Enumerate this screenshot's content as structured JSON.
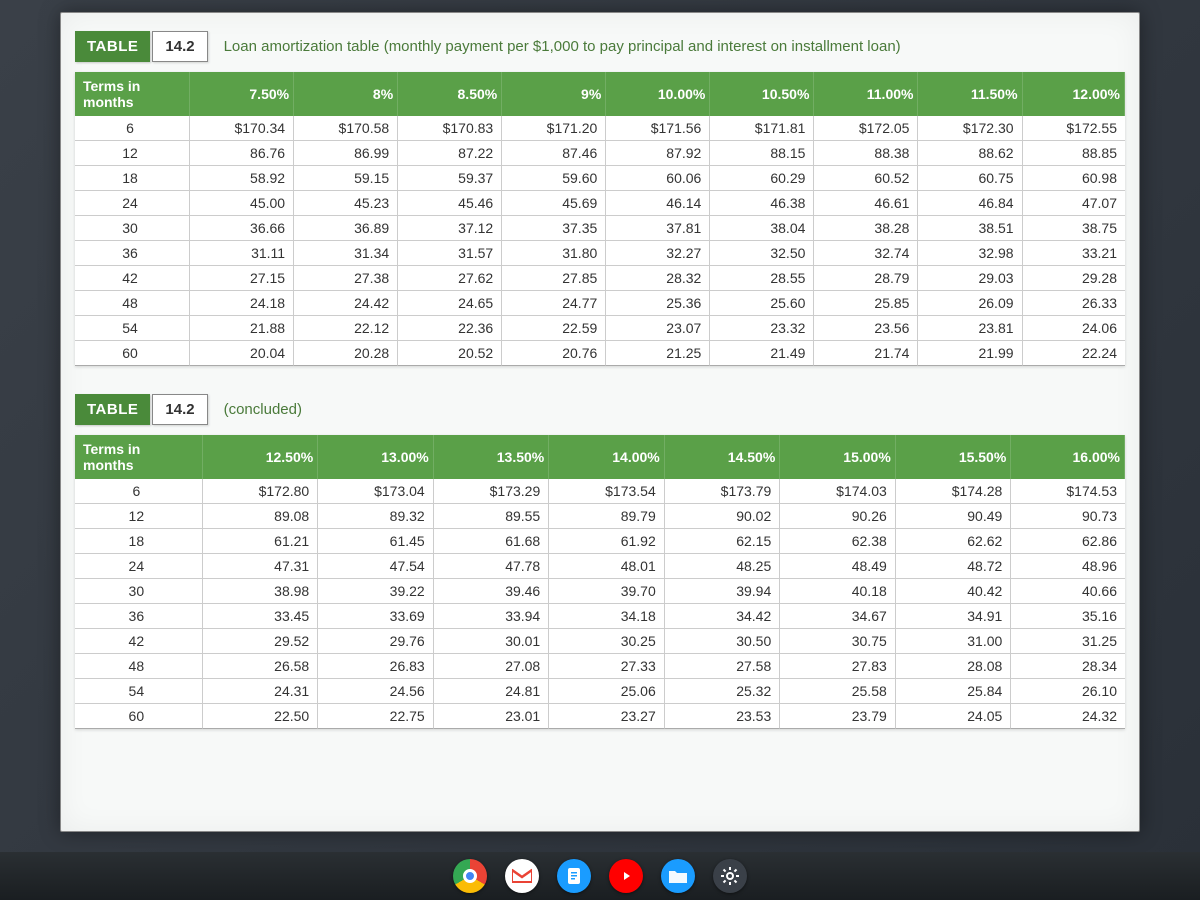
{
  "table1": {
    "tag": "TABLE",
    "num": "14.2",
    "caption": "Loan amortization table (monthly payment per $1,000 to pay principal and interest on installment loan)",
    "row_header": "Terms in months",
    "cols": [
      "7.50%",
      "8%",
      "8.50%",
      "9%",
      "10.00%",
      "10.50%",
      "11.00%",
      "11.50%",
      "12.00%"
    ],
    "row_labels": [
      "6",
      "12",
      "18",
      "24",
      "30",
      "36",
      "42",
      "48",
      "54",
      "60"
    ],
    "rows": [
      [
        "$170.34",
        "$170.58",
        "$170.83",
        "$171.20",
        "$171.56",
        "$171.81",
        "$172.05",
        "$172.30",
        "$172.55"
      ],
      [
        "86.76",
        "86.99",
        "87.22",
        "87.46",
        "87.92",
        "88.15",
        "88.38",
        "88.62",
        "88.85"
      ],
      [
        "58.92",
        "59.15",
        "59.37",
        "59.60",
        "60.06",
        "60.29",
        "60.52",
        "60.75",
        "60.98"
      ],
      [
        "45.00",
        "45.23",
        "45.46",
        "45.69",
        "46.14",
        "46.38",
        "46.61",
        "46.84",
        "47.07"
      ],
      [
        "36.66",
        "36.89",
        "37.12",
        "37.35",
        "37.81",
        "38.04",
        "38.28",
        "38.51",
        "38.75"
      ],
      [
        "31.11",
        "31.34",
        "31.57",
        "31.80",
        "32.27",
        "32.50",
        "32.74",
        "32.98",
        "33.21"
      ],
      [
        "27.15",
        "27.38",
        "27.62",
        "27.85",
        "28.32",
        "28.55",
        "28.79",
        "29.03",
        "29.28"
      ],
      [
        "24.18",
        "24.42",
        "24.65",
        "24.77",
        "25.36",
        "25.60",
        "25.85",
        "26.09",
        "26.33"
      ],
      [
        "21.88",
        "22.12",
        "22.36",
        "22.59",
        "23.07",
        "23.32",
        "23.56",
        "23.81",
        "24.06"
      ],
      [
        "20.04",
        "20.28",
        "20.52",
        "20.76",
        "21.25",
        "21.49",
        "21.74",
        "21.99",
        "22.24"
      ]
    ]
  },
  "table2": {
    "tag": "TABLE",
    "num": "14.2",
    "caption": "(concluded)",
    "row_header": "Terms in months",
    "cols": [
      "12.50%",
      "13.00%",
      "13.50%",
      "14.00%",
      "14.50%",
      "15.00%",
      "15.50%",
      "16.00%"
    ],
    "row_labels": [
      "6",
      "12",
      "18",
      "24",
      "30",
      "36",
      "42",
      "48",
      "54",
      "60"
    ],
    "rows": [
      [
        "$172.80",
        "$173.04",
        "$173.29",
        "$173.54",
        "$173.79",
        "$174.03",
        "$174.28",
        "$174.53"
      ],
      [
        "89.08",
        "89.32",
        "89.55",
        "89.79",
        "90.02",
        "90.26",
        "90.49",
        "90.73"
      ],
      [
        "61.21",
        "61.45",
        "61.68",
        "61.92",
        "62.15",
        "62.38",
        "62.62",
        "62.86"
      ],
      [
        "47.31",
        "47.54",
        "47.78",
        "48.01",
        "48.25",
        "48.49",
        "48.72",
        "48.96"
      ],
      [
        "38.98",
        "39.22",
        "39.46",
        "39.70",
        "39.94",
        "40.18",
        "40.42",
        "40.66"
      ],
      [
        "33.45",
        "33.69",
        "33.94",
        "34.18",
        "34.42",
        "34.67",
        "34.91",
        "35.16"
      ],
      [
        "29.52",
        "29.76",
        "30.01",
        "30.25",
        "30.50",
        "30.75",
        "31.00",
        "31.25"
      ],
      [
        "26.58",
        "26.83",
        "27.08",
        "27.33",
        "27.58",
        "27.83",
        "28.08",
        "28.34"
      ],
      [
        "24.31",
        "24.56",
        "24.81",
        "25.06",
        "25.32",
        "25.58",
        "25.84",
        "26.10"
      ],
      [
        "22.50",
        "22.75",
        "23.01",
        "23.27",
        "23.53",
        "23.79",
        "24.05",
        "24.32"
      ]
    ]
  },
  "colors": {
    "header_bg": "#5aa048",
    "tag_bg": "#4a8a3a",
    "caption_color": "#4a7a3a",
    "page_bg": "#f7f9f8",
    "cell_border": "#cccccc"
  }
}
